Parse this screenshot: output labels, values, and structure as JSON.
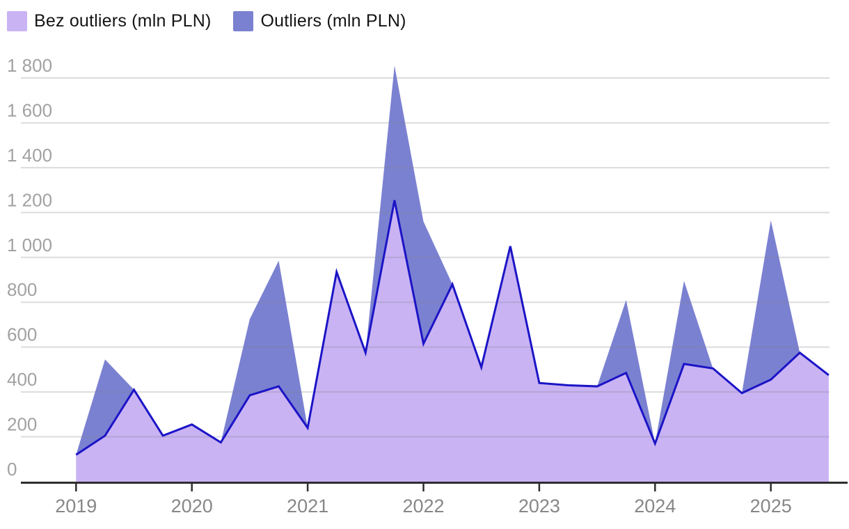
{
  "chart_data": {
    "type": "area",
    "stacked": true,
    "title": "",
    "x_quarters": [
      "2019 Q1",
      "2019 Q2",
      "2019 Q3",
      "2019 Q4",
      "2020 Q1",
      "2020 Q2",
      "2020 Q3",
      "2020 Q4",
      "2021 Q1",
      "2021 Q2",
      "2021 Q3",
      "2021 Q4",
      "2022 Q1",
      "2022 Q2",
      "2022 Q3",
      "2022 Q4",
      "2023 Q1",
      "2023 Q2",
      "2023 Q3",
      "2023 Q4",
      "2024 Q1",
      "2024 Q2",
      "2024 Q3",
      "2024 Q4",
      "2025 Q1",
      "2025 Q2",
      "2025 Q3"
    ],
    "series": [
      {
        "name": "Bez outliers (mln PLN)",
        "color": "#c9b3f3",
        "line_color": "#1b14c6",
        "values": [
          120,
          205,
          410,
          205,
          255,
          175,
          385,
          425,
          240,
          935,
          575,
          1255,
          615,
          880,
          510,
          1050,
          440,
          430,
          425,
          485,
          170,
          525,
          505,
          395,
          455,
          575,
          475
        ]
      },
      {
        "name": "Outliers (mln PLN)",
        "color": "#7b81d1",
        "values": [
          0,
          340,
          0,
          0,
          0,
          0,
          340,
          560,
          0,
          0,
          0,
          600,
          545,
          0,
          0,
          0,
          0,
          0,
          0,
          325,
          0,
          370,
          0,
          0,
          710,
          0,
          0
        ]
      }
    ],
    "ylim": [
      0,
      1800
    ],
    "ytick_step": 200,
    "ytick_labels": [
      "0",
      "200",
      "400",
      "600",
      "800",
      "1 000",
      "1 200",
      "1 400",
      "1 600",
      "1 800"
    ],
    "xtick_labels": [
      "2019",
      "2020",
      "2021",
      "2022",
      "2023",
      "2024",
      "2025"
    ],
    "grid": true,
    "legend_position": "top-left",
    "colors": {
      "grid_line": "#e3e3e6",
      "axis_line": "#2e2e2e",
      "ytick_text": "#a2a2a2",
      "xtick_text": "#878787",
      "legend_text": "#141414"
    }
  }
}
